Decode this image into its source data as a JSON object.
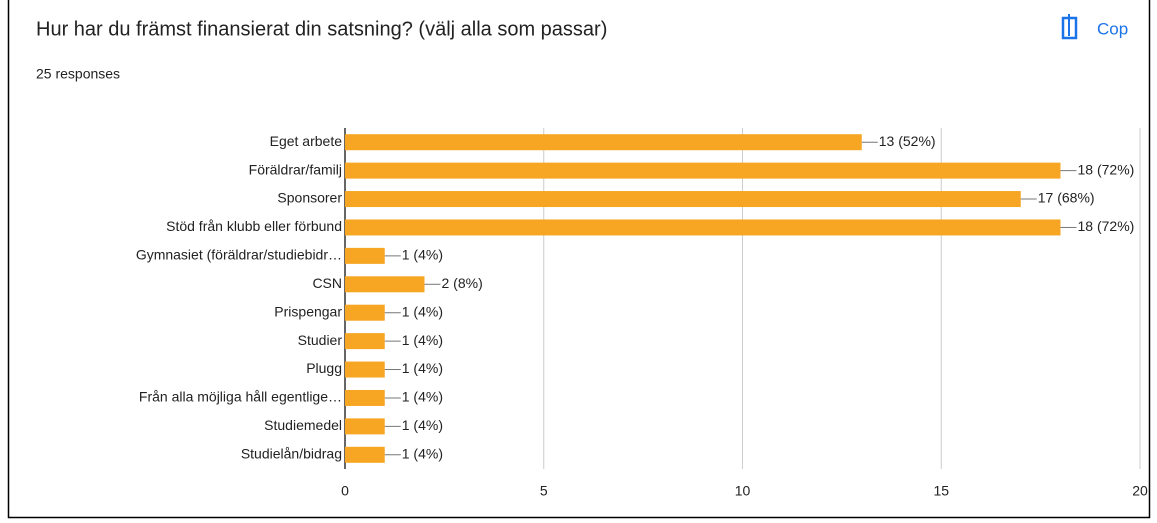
{
  "chart_data": {
    "type": "bar",
    "orientation": "horizontal",
    "title": "Hur har du främst finansierat din satsning? (välj alla som passar)",
    "subtitle": "25 responses",
    "button": "Cop",
    "categories": [
      "Eget arbete",
      "Föräldrar/familj",
      "Sponsorer",
      "Stöd från klubb eller förbund",
      "Gymnasiet (föräldrar/studiebidr…",
      "CSN",
      "Prispengar",
      "Studier",
      "Plugg",
      "Från alla möjliga håll egentlige…",
      "Studiemedel",
      "Studielån/bidrag"
    ],
    "values": [
      13,
      18,
      17,
      18,
      1,
      2,
      1,
      1,
      1,
      1,
      1,
      1
    ],
    "value_labels": [
      "13 (52%)",
      "18 (72%)",
      "17 (68%)",
      "18 (72%)",
      "1 (4%)",
      "2 (8%)",
      "1 (4%)",
      "1 (4%)",
      "1 (4%)",
      "1 (4%)",
      "1 (4%)",
      "1 (4%)"
    ],
    "color": "#f6a623",
    "xlim": [
      0,
      20
    ],
    "xticks": [
      0,
      5,
      10,
      15,
      20
    ],
    "grid": true
  }
}
